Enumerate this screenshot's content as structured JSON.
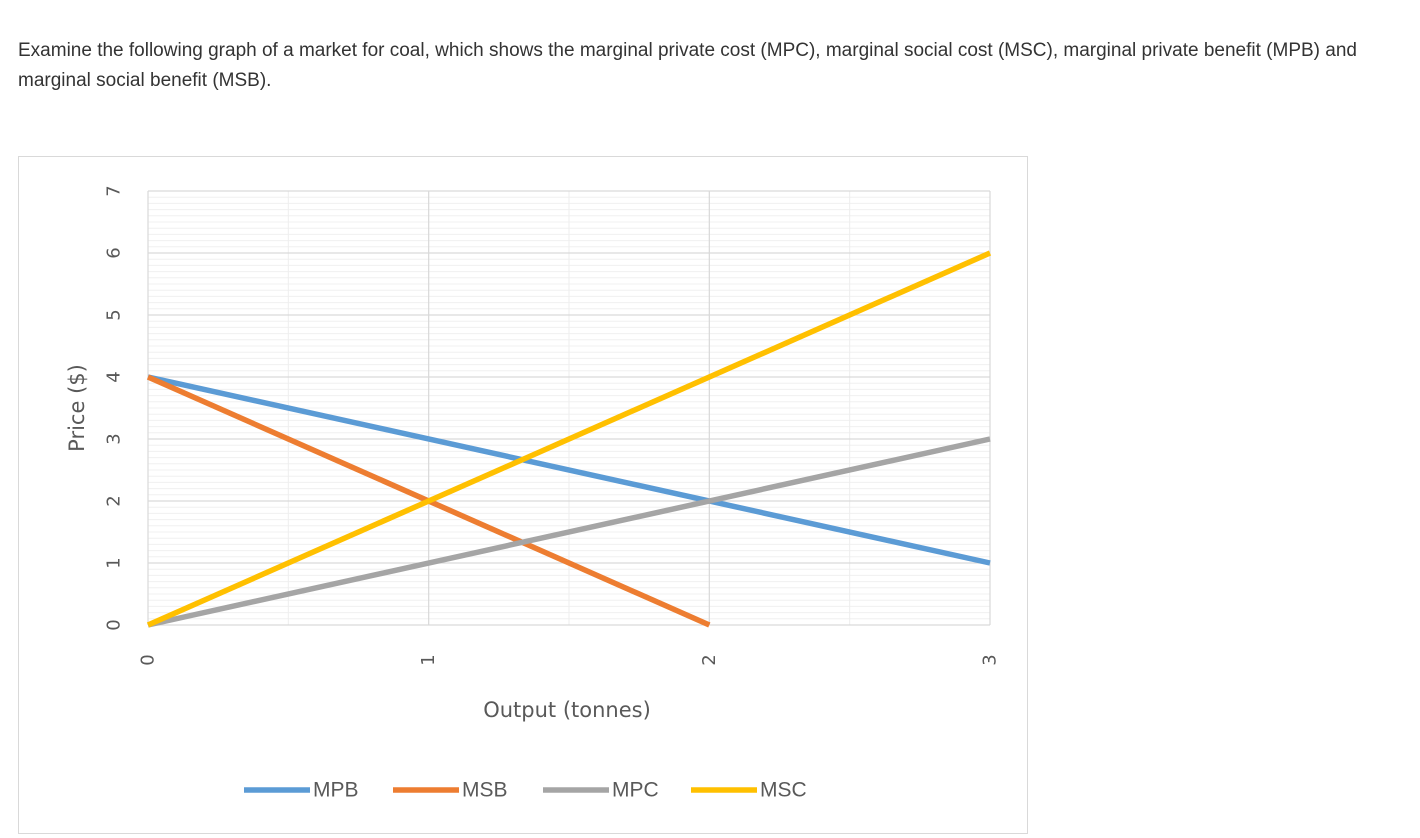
{
  "question": {
    "text": "Examine the following graph of a market for coal, which shows the marginal private cost (MPC), marginal social cost (MSC), marginal private benefit (MPB) and marginal social benefit (MSB)."
  },
  "chart_data": {
    "type": "line",
    "title": "",
    "xlabel": "Output (tonnes)",
    "ylabel": "Price ($)",
    "xlim": [
      0,
      3
    ],
    "ylim": [
      0,
      7
    ],
    "x_ticks": [
      "0",
      "1",
      "2",
      "3"
    ],
    "y_ticks": [
      "0",
      "1",
      "2",
      "3",
      "4",
      "5",
      "6",
      "7"
    ],
    "grid": true,
    "legend_position": "bottom",
    "series": [
      {
        "name": "MPB",
        "color": "#5b9bd5",
        "points": [
          [
            0,
            4
          ],
          [
            3,
            1
          ]
        ]
      },
      {
        "name": "MSB",
        "color": "#ed7d31",
        "points": [
          [
            0,
            4
          ],
          [
            2,
            0
          ]
        ]
      },
      {
        "name": "MPC",
        "color": "#a5a5a5",
        "points": [
          [
            0,
            0
          ],
          [
            3,
            3
          ]
        ]
      },
      {
        "name": "MSC",
        "color": "#ffc000",
        "points": [
          [
            0,
            0
          ],
          [
            3,
            6
          ]
        ]
      }
    ]
  }
}
